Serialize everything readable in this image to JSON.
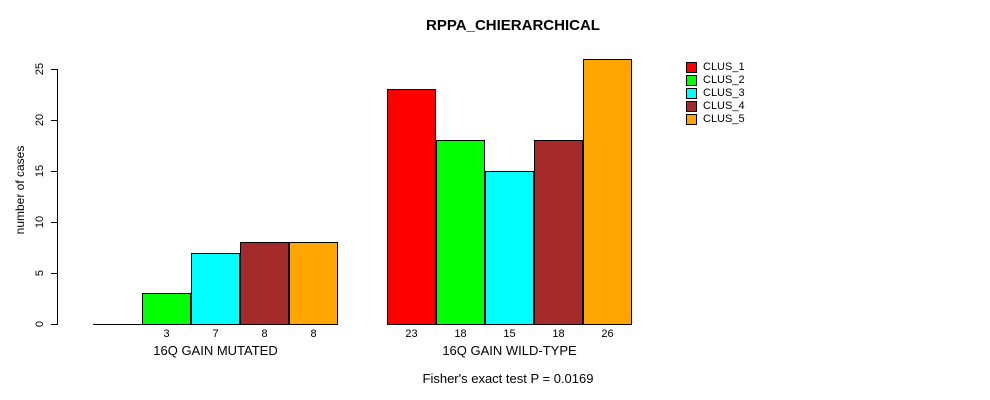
{
  "chart_data": {
    "type": "bar",
    "title": "RPPA_CHIERARCHICAL",
    "ylabel": "number of cases",
    "xlabel": "",
    "ylim": [
      0,
      25
    ],
    "yticks": [
      0,
      5,
      10,
      15,
      20,
      25
    ],
    "grid": false,
    "legend_position": "right-outside",
    "bar_value_labels_shown": true,
    "zero_value_labels_hidden": true,
    "categories": [
      "16Q GAIN MUTATED",
      "16Q GAIN WILD-TYPE"
    ],
    "series": [
      {
        "name": "CLUS_1",
        "color": "#FF0000",
        "values": [
          0,
          23
        ]
      },
      {
        "name": "CLUS_2",
        "color": "#00FF00",
        "values": [
          3,
          18
        ]
      },
      {
        "name": "CLUS_3",
        "color": "#00FFFF",
        "values": [
          7,
          15
        ]
      },
      {
        "name": "CLUS_4",
        "color": "#A52A2A",
        "values": [
          8,
          18
        ]
      },
      {
        "name": "CLUS_5",
        "color": "#FFA500",
        "values": [
          8,
          26
        ]
      }
    ]
  },
  "annotation": "Fisher's exact test P = 0.0169",
  "colors": {
    "background": "#FFFFFF",
    "axis": "#000000",
    "text": "#000000"
  }
}
